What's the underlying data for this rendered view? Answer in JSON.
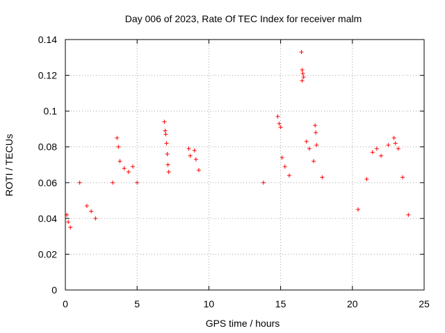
{
  "chart_data": {
    "type": "scatter",
    "title": "Day 006 of 2023, Rate Of TEC Index for receiver malm",
    "xlabel": "GPS time / hours",
    "ylabel": "ROTI / TECUs",
    "xlim": [
      0,
      25
    ],
    "ylim": [
      0,
      0.14
    ],
    "x_ticks": [
      "0",
      "5",
      "10",
      "15",
      "20",
      "25"
    ],
    "y_ticks": [
      "0",
      "0.02",
      "0.04",
      "0.06",
      "0.08",
      "0.1",
      "0.12",
      "0.14"
    ],
    "grid": true,
    "marker": "+",
    "color": "#ff0000",
    "series": [
      {
        "name": "ROTI",
        "points": [
          [
            0.1,
            0.042
          ],
          [
            0.2,
            0.038
          ],
          [
            0.35,
            0.035
          ],
          [
            1.0,
            0.06
          ],
          [
            1.5,
            0.047
          ],
          [
            1.8,
            0.044
          ],
          [
            2.1,
            0.04
          ],
          [
            3.3,
            0.06
          ],
          [
            3.6,
            0.085
          ],
          [
            3.7,
            0.08
          ],
          [
            3.8,
            0.072
          ],
          [
            4.1,
            0.068
          ],
          [
            4.4,
            0.066
          ],
          [
            4.7,
            0.069
          ],
          [
            5.0,
            0.06
          ],
          [
            6.9,
            0.094
          ],
          [
            6.95,
            0.089
          ],
          [
            7.0,
            0.087
          ],
          [
            7.05,
            0.082
          ],
          [
            7.1,
            0.076
          ],
          [
            7.15,
            0.07
          ],
          [
            7.2,
            0.066
          ],
          [
            8.6,
            0.079
          ],
          [
            8.7,
            0.075
          ],
          [
            9.0,
            0.078
          ],
          [
            9.1,
            0.073
          ],
          [
            9.3,
            0.067
          ],
          [
            13.8,
            0.06
          ],
          [
            14.8,
            0.097
          ],
          [
            14.9,
            0.093
          ],
          [
            15.0,
            0.091
          ],
          [
            15.1,
            0.074
          ],
          [
            15.3,
            0.069
          ],
          [
            15.6,
            0.064
          ],
          [
            16.45,
            0.133
          ],
          [
            16.5,
            0.123
          ],
          [
            16.55,
            0.121
          ],
          [
            16.6,
            0.119
          ],
          [
            16.5,
            0.117
          ],
          [
            16.8,
            0.083
          ],
          [
            17.0,
            0.079
          ],
          [
            17.3,
            0.072
          ],
          [
            17.4,
            0.092
          ],
          [
            17.45,
            0.088
          ],
          [
            17.5,
            0.081
          ],
          [
            17.9,
            0.063
          ],
          [
            20.4,
            0.045
          ],
          [
            21.0,
            0.062
          ],
          [
            21.4,
            0.077
          ],
          [
            21.7,
            0.079
          ],
          [
            22.0,
            0.075
          ],
          [
            22.5,
            0.081
          ],
          [
            22.9,
            0.085
          ],
          [
            23.0,
            0.082
          ],
          [
            23.2,
            0.079
          ],
          [
            23.5,
            0.063
          ],
          [
            23.9,
            0.042
          ]
        ]
      }
    ]
  }
}
